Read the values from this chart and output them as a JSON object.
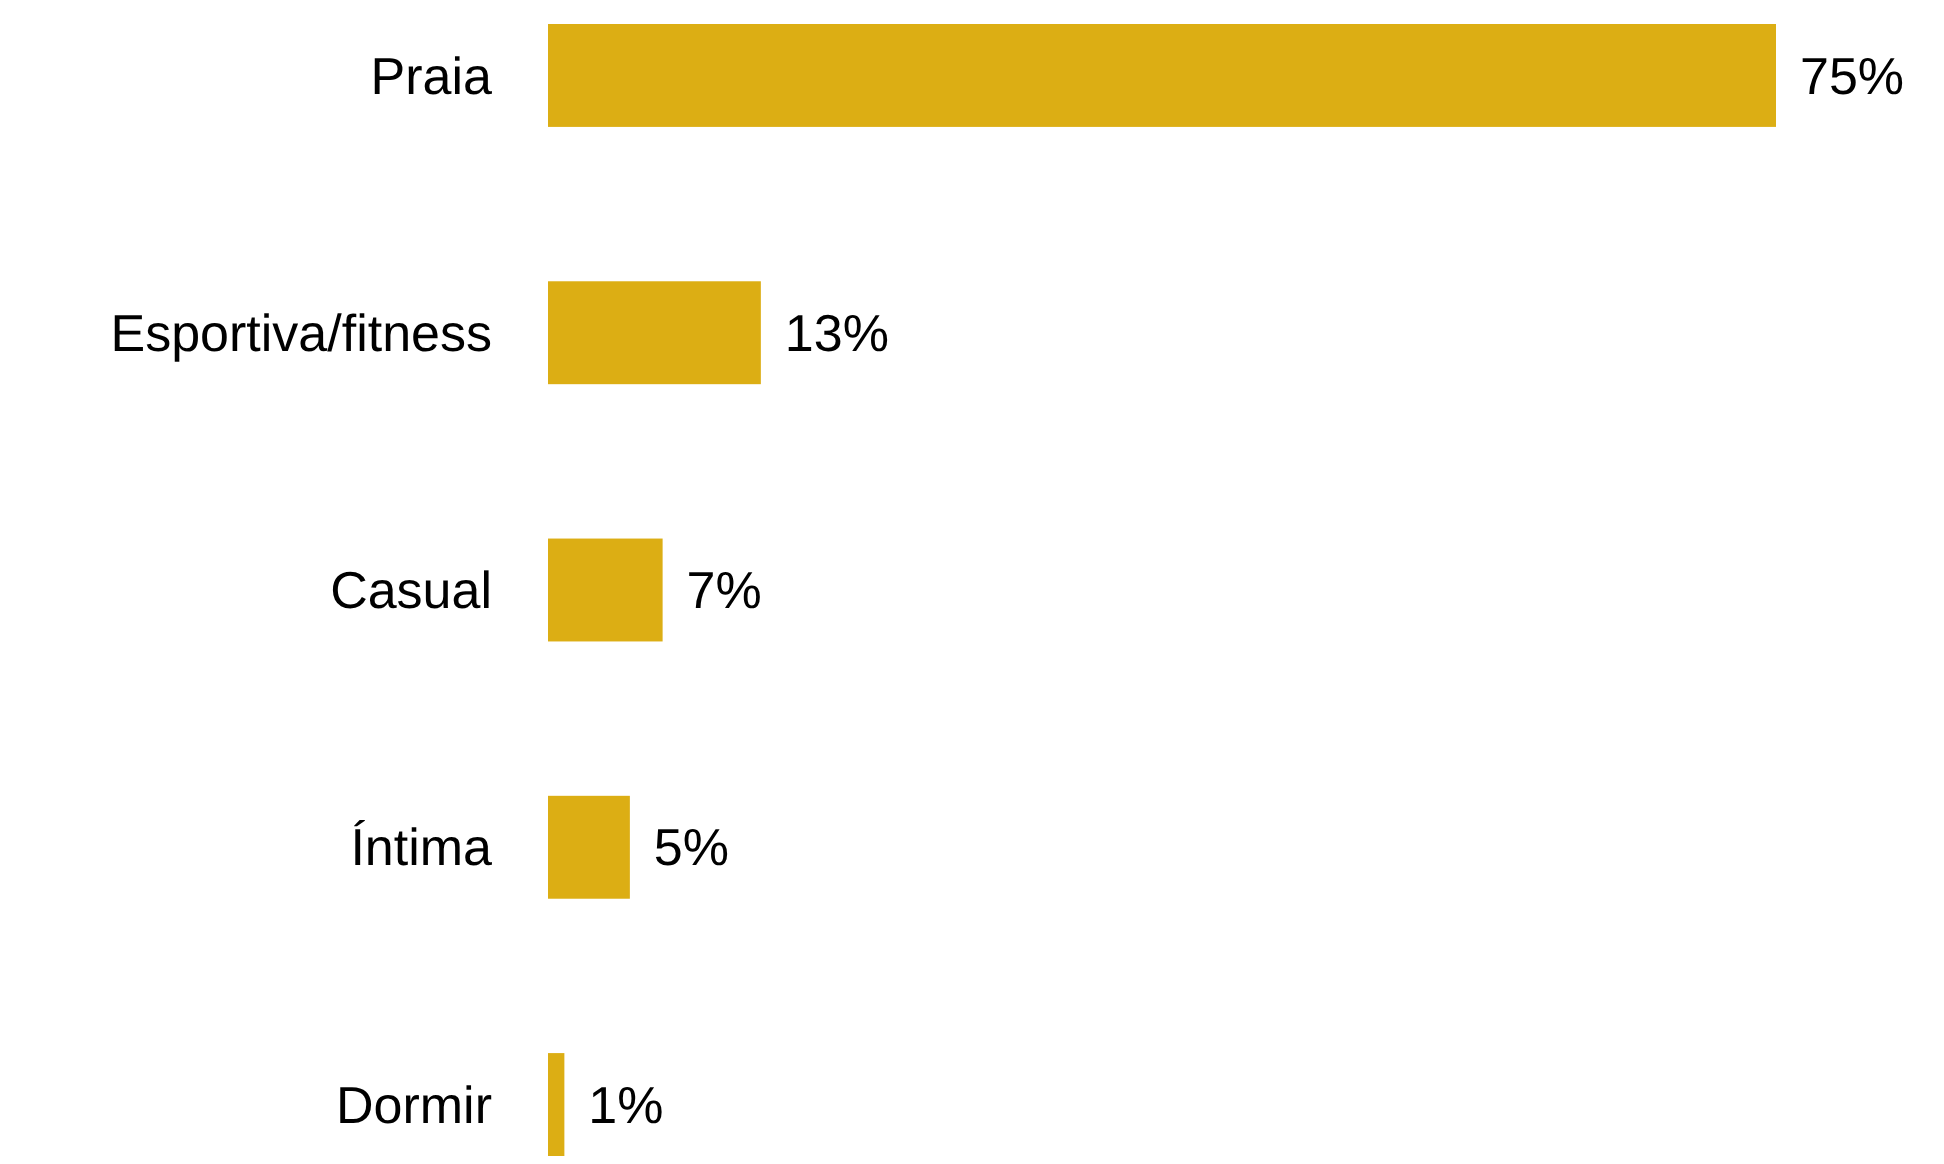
{
  "chart_data": {
    "type": "bar",
    "orientation": "horizontal",
    "categories": [
      "Praia",
      "Esportiva/fitness",
      "Casual",
      "Íntima",
      "Dormir"
    ],
    "values": [
      75,
      13,
      7,
      5,
      1
    ],
    "color": "#dcae14",
    "value_labels": [
      "75%",
      "13%",
      "7%",
      "5%",
      "1%"
    ]
  }
}
